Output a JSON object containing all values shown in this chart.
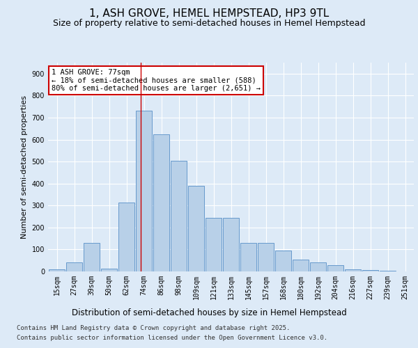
{
  "title": "1, ASH GROVE, HEMEL HEMPSTEAD, HP3 9TL",
  "subtitle": "Size of property relative to semi-detached houses in Hemel Hempstead",
  "xlabel": "Distribution of semi-detached houses by size in Hemel Hempstead",
  "ylabel": "Number of semi-detached properties",
  "categories": [
    "15sqm",
    "27sqm",
    "39sqm",
    "50sqm",
    "62sqm",
    "74sqm",
    "86sqm",
    "98sqm",
    "109sqm",
    "121sqm",
    "133sqm",
    "145sqm",
    "157sqm",
    "168sqm",
    "180sqm",
    "192sqm",
    "204sqm",
    "216sqm",
    "227sqm",
    "239sqm",
    "251sqm"
  ],
  "values": [
    10,
    42,
    130,
    12,
    315,
    730,
    625,
    505,
    390,
    245,
    245,
    130,
    130,
    95,
    55,
    40,
    27,
    10,
    5,
    2,
    1
  ],
  "bar_color": "#b8d0e8",
  "bar_edge_color": "#6699cc",
  "vline_x_index": 4.83,
  "vline_color": "#cc0000",
  "annotation_title": "1 ASH GROVE: 77sqm",
  "annotation_line1": "← 18% of semi-detached houses are smaller (588)",
  "annotation_line2": "80% of semi-detached houses are larger (2,651) →",
  "annotation_box_color": "#cc0000",
  "ylim": [
    0,
    950
  ],
  "yticks": [
    0,
    100,
    200,
    300,
    400,
    500,
    600,
    700,
    800,
    900
  ],
  "footer_line1": "Contains HM Land Registry data © Crown copyright and database right 2025.",
  "footer_line2": "Contains public sector information licensed under the Open Government Licence v3.0.",
  "bg_color": "#ddeaf7",
  "fig_bg_color": "#ddeaf7",
  "title_fontsize": 11,
  "subtitle_fontsize": 9,
  "tick_fontsize": 7,
  "ylabel_fontsize": 8,
  "xlabel_fontsize": 8.5,
  "footer_fontsize": 6.5,
  "annotation_fontsize": 7.5
}
